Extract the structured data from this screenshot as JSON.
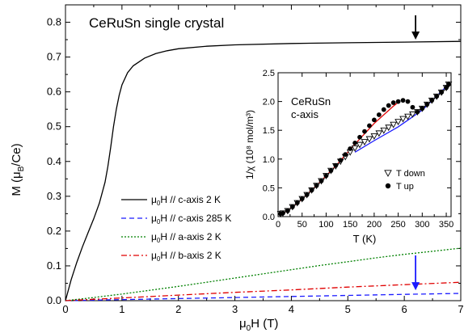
{
  "chart_data": [
    {
      "type": "line",
      "title": "CeRuSn single crystal",
      "xlabel_main": "μ",
      "xlabel_sub": "0",
      "xlabel_rest": "H (T)",
      "ylabel_main": "M (μ",
      "ylabel_sub": "B",
      "ylabel_rest": "/Ce)",
      "xlim": [
        0,
        7
      ],
      "ylim": [
        0,
        0.85
      ],
      "xticks": [
        0,
        1,
        2,
        3,
        4,
        5,
        6,
        7
      ],
      "yticks": [
        0.0,
        0.1,
        0.2,
        0.3,
        0.4,
        0.5,
        0.6,
        0.7,
        0.8
      ],
      "ytick_labels": [
        "0.0",
        "0.1",
        "0.2",
        "0.3",
        "0.4",
        "0.5",
        "0.6",
        "0.7",
        "0.8"
      ],
      "grid": false,
      "legend_position": "lower-left",
      "series": [
        {
          "name": "μ0H // c-axis 2 K",
          "legend_main": "μ",
          "legend_sub": "0",
          "legend_rest": "H // c-axis 2 K",
          "color": "#000000",
          "dash": "solid",
          "x": [
            0,
            0.05,
            0.1,
            0.2,
            0.3,
            0.4,
            0.5,
            0.6,
            0.7,
            0.75,
            0.8,
            0.85,
            0.9,
            0.95,
            1.0,
            1.1,
            1.2,
            1.4,
            1.6,
            1.8,
            2.0,
            2.5,
            3.0,
            4.0,
            5.0,
            6.0,
            7.0
          ],
          "y": [
            0,
            0.03,
            0.06,
            0.11,
            0.155,
            0.195,
            0.235,
            0.28,
            0.34,
            0.385,
            0.44,
            0.5,
            0.55,
            0.59,
            0.62,
            0.655,
            0.675,
            0.697,
            0.71,
            0.718,
            0.724,
            0.731,
            0.735,
            0.739,
            0.741,
            0.743,
            0.745
          ]
        },
        {
          "name": "μ0H // c-axis 285 K",
          "legend_main": "μ",
          "legend_sub": "0",
          "legend_rest": "H // c-axis 285 K",
          "color": "#1a1aff",
          "dash": "6,4",
          "x": [
            0,
            1,
            2,
            3,
            4,
            5,
            6,
            7
          ],
          "y": [
            0,
            0.003,
            0.006,
            0.009,
            0.012,
            0.015,
            0.018,
            0.021
          ]
        },
        {
          "name": "μ0H // a-axis 2 K",
          "legend_main": "μ",
          "legend_sub": "0",
          "legend_rest": "H // a-axis 2 K",
          "color": "#008000",
          "dash": "2,2",
          "x": [
            0,
            0.5,
            1,
            1.5,
            2,
            2.5,
            3,
            3.5,
            4,
            4.5,
            5,
            5.5,
            6,
            6.5,
            7
          ],
          "y": [
            0,
            0.009,
            0.019,
            0.03,
            0.041,
            0.053,
            0.065,
            0.077,
            0.089,
            0.101,
            0.112,
            0.123,
            0.133,
            0.142,
            0.151
          ]
        },
        {
          "name": "μ0H // b-axis 2 K",
          "legend_main": "μ",
          "legend_sub": "0",
          "legend_rest": "H // b-axis 2 K",
          "color": "#e00000",
          "dash": "7,3,2,3",
          "x": [
            0,
            1,
            2,
            3,
            4,
            5,
            6,
            7
          ],
          "y": [
            0,
            0.008,
            0.016,
            0.024,
            0.031,
            0.039,
            0.046,
            0.053
          ]
        }
      ],
      "annotations": [
        {
          "type": "arrow",
          "color": "#000000",
          "x": 6.2,
          "y_from": 0.82,
          "y_to": 0.75
        },
        {
          "type": "arrow",
          "color": "#1a1aff",
          "x": 6.2,
          "y_from": 0.13,
          "y_to": 0.03
        }
      ]
    },
    {
      "type": "scatter",
      "title": "CeRuSn",
      "subtitle": "c-axis",
      "xlabel": "T (K)",
      "ylabel": "1/χ (10⁸ mol/m³)",
      "xlim": [
        0,
        360
      ],
      "ylim": [
        0,
        2.5
      ],
      "xticks": [
        0,
        50,
        100,
        150,
        200,
        250,
        300,
        350
      ],
      "yticks": [
        0.0,
        0.5,
        1.0,
        1.5,
        2.0,
        2.5
      ],
      "ytick_labels": [
        "0.0",
        "0.5",
        "1.0",
        "1.5",
        "2.0",
        "2.5"
      ],
      "grid": false,
      "legend_position": "lower-right",
      "series": [
        {
          "name": "T down",
          "marker": "triangle-down-open",
          "x": [
            5,
            10,
            20,
            30,
            40,
            50,
            60,
            70,
            80,
            90,
            100,
            110,
            120,
            130,
            140,
            150,
            160,
            170,
            180,
            190,
            200,
            210,
            220,
            230,
            240,
            250,
            260,
            270,
            280,
            290,
            300,
            310,
            320,
            330,
            340,
            350,
            355
          ],
          "y": [
            0.05,
            0.06,
            0.1,
            0.17,
            0.24,
            0.31,
            0.38,
            0.46,
            0.54,
            0.62,
            0.71,
            0.8,
            0.88,
            0.96,
            1.04,
            1.12,
            1.19,
            1.25,
            1.3,
            1.35,
            1.4,
            1.45,
            1.5,
            1.55,
            1.6,
            1.65,
            1.7,
            1.74,
            1.78,
            1.82,
            1.88,
            1.95,
            2.02,
            2.09,
            2.16,
            2.24,
            2.3
          ]
        },
        {
          "name": "T up",
          "marker": "circle-filled",
          "x": [
            5,
            10,
            20,
            30,
            40,
            50,
            60,
            70,
            80,
            90,
            100,
            110,
            120,
            130,
            140,
            150,
            160,
            170,
            180,
            190,
            200,
            210,
            220,
            230,
            240,
            250,
            260,
            270,
            280,
            290,
            300,
            310,
            320,
            330,
            340,
            350,
            355
          ],
          "y": [
            0.05,
            0.06,
            0.1,
            0.17,
            0.24,
            0.31,
            0.38,
            0.46,
            0.54,
            0.62,
            0.71,
            0.8,
            0.89,
            0.98,
            1.08,
            1.18,
            1.28,
            1.38,
            1.48,
            1.58,
            1.68,
            1.77,
            1.86,
            1.93,
            1.98,
            2.0,
            2.02,
            2.0,
            1.9,
            1.82,
            1.88,
            1.95,
            2.02,
            2.09,
            2.16,
            2.24,
            2.3
          ]
        }
      ],
      "fits": [
        {
          "color": "#e00000",
          "x": [
            10,
            40,
            80,
            120,
            160,
            200,
            240,
            252
          ],
          "y": [
            0.05,
            0.23,
            0.54,
            0.88,
            1.26,
            1.62,
            1.92,
            2.0
          ]
        },
        {
          "color": "#1a1aff",
          "x": [
            160,
            200,
            250,
            300,
            360
          ],
          "y": [
            1.12,
            1.32,
            1.56,
            1.85,
            2.34
          ]
        }
      ]
    }
  ]
}
